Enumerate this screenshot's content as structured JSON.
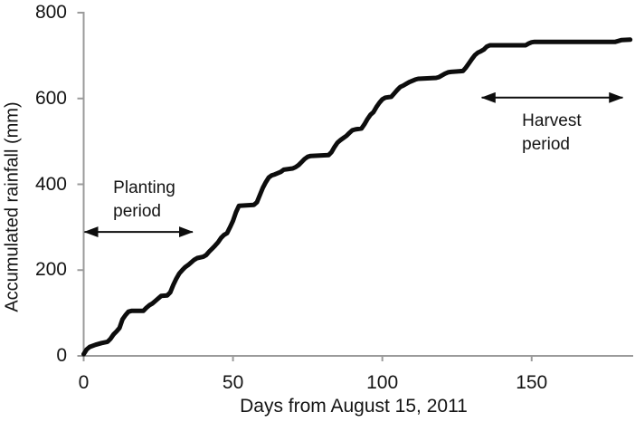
{
  "chart_data": {
    "type": "line",
    "title": "",
    "xlabel": "Days from August 15, 2011",
    "ylabel": "Accumulated rainfall (mm)",
    "xlim": [
      0,
      184
    ],
    "ylim": [
      0,
      800
    ],
    "xticks": [
      0,
      50,
      100,
      150
    ],
    "yticks": [
      800,
      600,
      400,
      200,
      0
    ],
    "grid": false,
    "legend": "none",
    "line_color": "#0d0d0d",
    "axis_color": "#9b9b9b",
    "series": [
      {
        "name": "Accumulated rainfall",
        "points": [
          [
            0,
            4
          ],
          [
            1,
            15
          ],
          [
            2,
            21
          ],
          [
            4,
            26
          ],
          [
            6,
            30
          ],
          [
            8,
            33
          ],
          [
            9,
            40
          ],
          [
            10,
            50
          ],
          [
            11,
            57
          ],
          [
            12,
            65
          ],
          [
            13,
            85
          ],
          [
            14,
            95
          ],
          [
            15,
            103
          ],
          [
            16,
            105
          ],
          [
            20,
            105
          ],
          [
            21,
            112
          ],
          [
            22,
            118
          ],
          [
            23,
            122
          ],
          [
            24,
            128
          ],
          [
            25,
            134
          ],
          [
            26,
            140
          ],
          [
            28,
            141
          ],
          [
            29,
            148
          ],
          [
            30,
            165
          ],
          [
            31,
            180
          ],
          [
            32,
            192
          ],
          [
            33,
            200
          ],
          [
            34,
            207
          ],
          [
            35,
            212
          ],
          [
            36,
            218
          ],
          [
            37,
            224
          ],
          [
            38,
            228
          ],
          [
            40,
            231
          ],
          [
            41,
            235
          ],
          [
            42,
            243
          ],
          [
            43,
            250
          ],
          [
            44,
            257
          ],
          [
            45,
            265
          ],
          [
            46,
            275
          ],
          [
            47,
            282
          ],
          [
            48,
            286
          ],
          [
            49,
            300
          ],
          [
            50,
            315
          ],
          [
            51,
            335
          ],
          [
            52,
            350
          ],
          [
            57,
            352
          ],
          [
            58,
            358
          ],
          [
            59,
            375
          ],
          [
            60,
            392
          ],
          [
            61,
            405
          ],
          [
            62,
            416
          ],
          [
            63,
            421
          ],
          [
            64,
            423
          ],
          [
            66,
            429
          ],
          [
            67,
            434
          ],
          [
            70,
            437
          ],
          [
            71,
            440
          ],
          [
            72,
            445
          ],
          [
            73,
            452
          ],
          [
            74,
            459
          ],
          [
            75,
            464
          ],
          [
            76,
            466
          ],
          [
            82,
            468
          ],
          [
            83,
            475
          ],
          [
            84,
            487
          ],
          [
            85,
            497
          ],
          [
            86,
            503
          ],
          [
            87,
            508
          ],
          [
            88,
            513
          ],
          [
            89,
            520
          ],
          [
            90,
            526
          ],
          [
            91,
            528
          ],
          [
            93,
            530
          ],
          [
            94,
            540
          ],
          [
            95,
            552
          ],
          [
            96,
            562
          ],
          [
            97,
            568
          ],
          [
            98,
            580
          ],
          [
            99,
            590
          ],
          [
            100,
            598
          ],
          [
            101,
            602
          ],
          [
            103,
            604
          ],
          [
            104,
            612
          ],
          [
            105,
            620
          ],
          [
            106,
            627
          ],
          [
            107,
            630
          ],
          [
            108,
            634
          ],
          [
            109,
            638
          ],
          [
            110,
            641
          ],
          [
            111,
            644
          ],
          [
            112,
            646
          ],
          [
            118,
            648
          ],
          [
            119,
            650
          ],
          [
            120,
            654
          ],
          [
            121,
            658
          ],
          [
            122,
            661
          ],
          [
            123,
            662
          ],
          [
            127,
            664
          ],
          [
            128,
            672
          ],
          [
            129,
            682
          ],
          [
            130,
            692
          ],
          [
            131,
            701
          ],
          [
            132,
            707
          ],
          [
            133,
            710
          ],
          [
            134,
            714
          ],
          [
            135,
            721
          ],
          [
            136,
            724
          ],
          [
            148,
            724
          ],
          [
            149,
            728
          ],
          [
            150,
            731
          ],
          [
            151,
            732
          ],
          [
            178,
            732
          ],
          [
            180,
            736
          ],
          [
            183,
            737
          ]
        ]
      }
    ],
    "annotations": [
      {
        "id": "planting-period",
        "label_lines": [
          "Planting",
          "period"
        ],
        "arrow": {
          "x1": 0.3,
          "x2": 36.5,
          "y": 289
        },
        "label_pos": {
          "x": 9.9,
          "y": 418
        }
      },
      {
        "id": "harvest-period",
        "label_lines": [
          "Harvest",
          "period"
        ],
        "arrow": {
          "x1": 133.3,
          "x2": 180.5,
          "y": 602
        },
        "label_pos": {
          "x": 146.8,
          "y": 575
        }
      }
    ]
  }
}
